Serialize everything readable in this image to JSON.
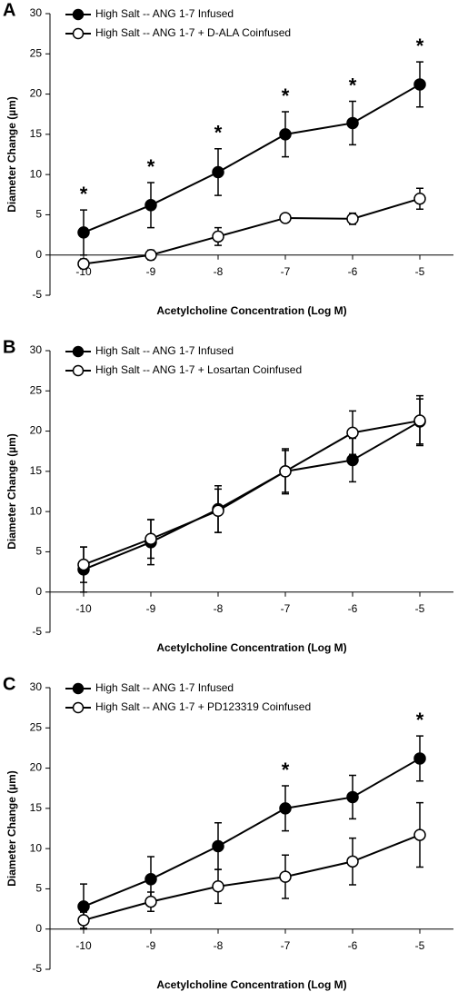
{
  "chart_data": [
    {
      "type": "line",
      "panel_label": "A",
      "x_label": "Acetylcholine Concentration (Log M)",
      "y_label": "Diameter Change (µm)",
      "x": [
        -10,
        -9,
        -8,
        -7,
        -6,
        -5
      ],
      "xlim": [
        -10.5,
        -4.5
      ],
      "xticks": [
        -10,
        -9,
        -8,
        -7,
        -6,
        -5
      ],
      "ylim": [
        -5,
        30
      ],
      "yticks": [
        -5,
        0,
        5,
        10,
        15,
        20,
        25,
        30
      ],
      "series": [
        {
          "name": "High Salt -- ANG 1-7 Infused",
          "color": "#000000",
          "marker_fill": "#000000",
          "values": [
            2.8,
            6.2,
            10.3,
            15.0,
            16.4,
            21.2
          ],
          "errors": [
            2.8,
            2.8,
            2.9,
            2.8,
            2.7,
            2.8
          ]
        },
        {
          "name": "High Salt -- ANG 1-7 + D-ALA Coinfused",
          "color": "#000000",
          "marker_fill": "#ffffff",
          "values": [
            -1.1,
            0.0,
            2.3,
            4.6,
            4.5,
            7.0
          ],
          "errors": [
            0.6,
            0.6,
            1.1,
            0.4,
            0.7,
            1.3
          ]
        }
      ],
      "annotations": [
        {
          "x": -10,
          "text": "*"
        },
        {
          "x": -9,
          "text": "*"
        },
        {
          "x": -8,
          "text": "*"
        },
        {
          "x": -7,
          "text": "*"
        },
        {
          "x": -6,
          "text": "*"
        },
        {
          "x": -5,
          "text": "*"
        }
      ]
    },
    {
      "type": "line",
      "panel_label": "B",
      "x_label": "Acetylcholine Concentration (Log M)",
      "y_label": "Diameter Change (µm)",
      "x": [
        -10,
        -9,
        -8,
        -7,
        -6,
        -5
      ],
      "xlim": [
        -10.5,
        -4.5
      ],
      "xticks": [
        -10,
        -9,
        -8,
        -7,
        -6,
        -5
      ],
      "ylim": [
        -5,
        30
      ],
      "yticks": [
        -5,
        0,
        5,
        10,
        15,
        20,
        25,
        30
      ],
      "series": [
        {
          "name": "High Salt -- ANG 1-7 Infused",
          "color": "#000000",
          "marker_fill": "#000000",
          "values": [
            2.8,
            6.2,
            10.3,
            15.0,
            16.4,
            21.2
          ],
          "errors": [
            2.8,
            2.8,
            2.9,
            2.8,
            2.7,
            2.8
          ]
        },
        {
          "name": "High Salt -- ANG 1-7 + Losartan Coinfused",
          "color": "#000000",
          "marker_fill": "#ffffff",
          "values": [
            3.4,
            6.6,
            10.1,
            15.0,
            19.8,
            21.3
          ],
          "errors": [
            2.2,
            2.4,
            2.7,
            2.6,
            2.7,
            3.1
          ]
        }
      ],
      "annotations": []
    },
    {
      "type": "line",
      "panel_label": "C",
      "x_label": "Acetylcholine Concentration (Log M)",
      "y_label": "Diameter Change (µm)",
      "x": [
        -10,
        -9,
        -8,
        -7,
        -6,
        -5
      ],
      "xlim": [
        -10.5,
        -4.5
      ],
      "xticks": [
        -10,
        -9,
        -8,
        -7,
        -6,
        -5
      ],
      "ylim": [
        -5,
        30
      ],
      "yticks": [
        -5,
        0,
        5,
        10,
        15,
        20,
        25,
        30
      ],
      "series": [
        {
          "name": "High Salt -- ANG 1-7 Infused",
          "color": "#000000",
          "marker_fill": "#000000",
          "values": [
            2.8,
            6.2,
            10.3,
            15.0,
            16.4,
            21.2
          ],
          "errors": [
            2.8,
            2.8,
            2.9,
            2.8,
            2.7,
            2.8
          ]
        },
        {
          "name": "High Salt -- ANG 1-7 + PD123319 Coinfused",
          "color": "#000000",
          "marker_fill": "#ffffff",
          "values": [
            1.1,
            3.4,
            5.3,
            6.5,
            8.4,
            11.7
          ],
          "errors": [
            1.0,
            1.2,
            2.1,
            2.7,
            2.9,
            4.0
          ]
        }
      ],
      "annotations": [
        {
          "x": -7,
          "text": "*"
        },
        {
          "x": -5,
          "text": "*"
        }
      ]
    }
  ]
}
